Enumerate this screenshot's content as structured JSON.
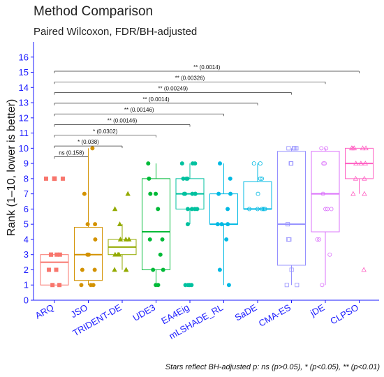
{
  "chart_data": {
    "type": "box",
    "title": "Method Comparison",
    "subtitle": "Paired Wilcoxon, FDR/BH-adjusted",
    "ylabel": "Rank (1–10, lower is better)",
    "xlabel": "",
    "caption": "Stars reflect BH-adjusted p: ns (p>0.05), * (p<0.05), ** (p<0.01)",
    "ylim": [
      0,
      17
    ],
    "yticks": [
      0,
      1,
      2,
      3,
      4,
      5,
      6,
      7,
      8,
      9,
      10,
      11,
      12,
      13,
      14,
      15,
      16
    ],
    "categories": [
      "ARQ",
      "JSO",
      "TRIDENT-DE",
      "UDE3",
      "EA4Eig",
      "mLSHADE_RL",
      "SaDE",
      "CMA-ES",
      "jDE",
      "CLPSO"
    ],
    "colors": [
      "#F8766D",
      "#D39200",
      "#93AA00",
      "#00BA38",
      "#00C19F",
      "#00B9E3",
      "#00B9E3",
      "#9590FF",
      "#DB72FB",
      "#FF61C3"
    ],
    "shapes": [
      "square",
      "circle",
      "triangle",
      "circle",
      "circle",
      "circle",
      "circle-open",
      "square-open",
      "circle-open",
      "triangle-open"
    ],
    "boxes": [
      {
        "q1": 1.0,
        "median": 2.5,
        "q3": 3.0,
        "whisker_low": 1,
        "whisker_high": 3
      },
      {
        "q1": 1.3,
        "median": 3.0,
        "q3": 4.8,
        "whisker_low": 1,
        "whisker_high": 10
      },
      {
        "q1": 3.0,
        "median": 3.5,
        "q3": 4.0,
        "whisker_low": 2,
        "whisker_high": 5
      },
      {
        "q1": 2.0,
        "median": 4.5,
        "q3": 8.0,
        "whisker_low": 1,
        "whisker_high": 9
      },
      {
        "q1": 6.0,
        "median": 7.0,
        "q3": 8.0,
        "whisker_low": 5,
        "whisker_high": 9
      },
      {
        "q1": 5.0,
        "median": 5.0,
        "q3": 7.0,
        "whisker_low": 1,
        "whisker_high": 9
      },
      {
        "q1": 6.0,
        "median": 6.0,
        "q3": 7.8,
        "whisker_low": 6,
        "whisker_high": 9
      },
      {
        "q1": 2.3,
        "median": 5.0,
        "q3": 9.8,
        "whisker_low": 1,
        "whisker_high": 10
      },
      {
        "q1": 4.5,
        "median": 7.0,
        "q3": 9.8,
        "whisker_low": 1,
        "whisker_high": 10
      },
      {
        "q1": 8.0,
        "median": 9.0,
        "q3": 10.0,
        "whisker_low": 7,
        "whisker_high": 10
      }
    ],
    "points": [
      [
        8,
        8,
        3,
        3,
        3,
        3,
        2,
        2,
        1,
        1
      ],
      [
        10,
        7,
        5,
        5,
        4,
        3,
        3,
        2,
        2,
        1,
        1,
        1
      ],
      [
        7,
        6,
        5,
        4,
        4,
        4,
        3,
        3,
        3,
        2,
        2,
        2
      ],
      [
        9,
        8,
        7,
        7,
        6,
        4,
        4,
        3,
        2,
        2,
        1,
        1
      ],
      [
        9,
        9,
        9,
        8,
        8,
        8,
        7,
        7,
        7,
        7,
        7,
        6,
        6,
        6,
        6,
        5,
        1,
        1,
        1,
        1
      ],
      [
        9,
        8,
        7,
        7,
        6,
        5,
        5,
        5,
        4,
        2,
        1
      ],
      [
        9,
        9,
        8,
        8,
        7,
        6,
        6,
        6,
        6,
        6
      ],
      [
        10,
        10,
        10,
        10,
        9,
        9,
        5,
        4,
        4,
        2,
        1,
        1
      ],
      [
        10,
        10,
        9,
        9,
        7,
        6,
        6,
        6,
        4,
        4,
        3,
        1
      ],
      [
        10,
        10,
        10,
        10,
        10,
        9,
        9,
        9,
        8,
        8,
        7,
        7,
        2
      ]
    ],
    "outliers": [
      {
        "category": "ARQ",
        "values": [
          8,
          8
        ]
      }
    ],
    "comparisons": [
      {
        "from": "ARQ",
        "to": "JSO",
        "label": "ns (0.158)"
      },
      {
        "from": "ARQ",
        "to": "TRIDENT-DE",
        "label": "* (0.038)"
      },
      {
        "from": "ARQ",
        "to": "UDE3",
        "label": "* (0.0302)"
      },
      {
        "from": "ARQ",
        "to": "EA4Eig",
        "label": "** (0.00146)"
      },
      {
        "from": "ARQ",
        "to": "mLSHADE_RL",
        "label": "** (0.00146)"
      },
      {
        "from": "ARQ",
        "to": "SaDE",
        "label": "** (0.0014)"
      },
      {
        "from": "ARQ",
        "to": "CMA-ES",
        "label": "** (0.00249)"
      },
      {
        "from": "ARQ",
        "to": "jDE",
        "label": "** (0.00326)"
      },
      {
        "from": "ARQ",
        "to": "CLPSO",
        "label": "** (0.0014)"
      }
    ],
    "grid": false
  }
}
